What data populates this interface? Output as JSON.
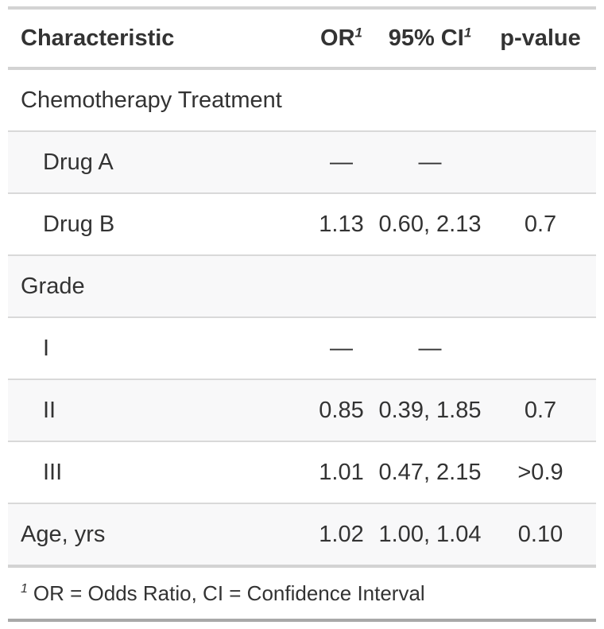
{
  "table": {
    "header": {
      "characteristic": "Characteristic",
      "or": "OR",
      "or_footnote_mark": "1",
      "ci": "95% CI",
      "ci_footnote_mark": "1",
      "p": "p-value"
    },
    "rows": [
      {
        "label": "Chemotherapy Treatment",
        "indent": false,
        "or": "",
        "ci": "",
        "p": ""
      },
      {
        "label": "Drug A",
        "indent": true,
        "or": "—",
        "ci": "—",
        "p": ""
      },
      {
        "label": "Drug B",
        "indent": true,
        "or": "1.13",
        "ci": "0.60, 2.13",
        "p": "0.7"
      },
      {
        "label": "Grade",
        "indent": false,
        "or": "",
        "ci": "",
        "p": ""
      },
      {
        "label": "I",
        "indent": true,
        "or": "—",
        "ci": "—",
        "p": ""
      },
      {
        "label": "II",
        "indent": true,
        "or": "0.85",
        "ci": "0.39, 1.85",
        "p": "0.7"
      },
      {
        "label": "III",
        "indent": true,
        "or": "1.01",
        "ci": "0.47, 2.15",
        "p": ">0.9"
      },
      {
        "label": "Age, yrs",
        "indent": false,
        "or": "1.02",
        "ci": "1.00, 1.04",
        "p": "0.10"
      }
    ],
    "footnote": {
      "mark": "1",
      "text": "OR = Odds Ratio, CI = Confidence Interval"
    },
    "colors": {
      "text": "#333333",
      "border_light": "#d3d3d3",
      "border_row": "#d9d9d9",
      "border_bottom": "#a9a9a9",
      "stripe": "#f8f8f9"
    }
  }
}
